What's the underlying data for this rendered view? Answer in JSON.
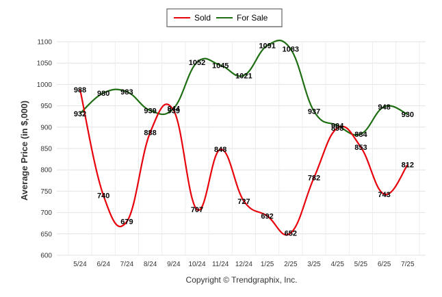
{
  "chart_data": {
    "type": "line",
    "categories": [
      "5/24",
      "6/24",
      "7/24",
      "8/24",
      "9/24",
      "10/24",
      "11/24",
      "12/24",
      "1/25",
      "2/25",
      "3/25",
      "4/25",
      "5/25",
      "6/25",
      "7/25"
    ],
    "series": [
      {
        "name": "Sold",
        "color": "#e8000b",
        "values": [
          988,
          740,
          679,
          888,
          939,
          707,
          848,
          727,
          692,
          652,
          782,
          898,
          853,
          743,
          812
        ]
      },
      {
        "name": "For Sale",
        "color": "#1e6e12",
        "values": [
          932,
          980,
          983,
          939,
          944,
          1052,
          1045,
          1021,
          1091,
          1083,
          937,
          904,
          884,
          948,
          930
        ]
      }
    ],
    "title": "",
    "xlabel": "",
    "ylabel": "Average Price (in $,000)",
    "ylim": [
      600,
      1100
    ],
    "yticks": [
      600,
      650,
      700,
      750,
      800,
      850,
      900,
      950,
      1000,
      1050,
      1100
    ],
    "grid": true,
    "legend_position": "top-center"
  },
  "footer": {
    "copyright": "Copyright © Trendgraphix, Inc."
  }
}
